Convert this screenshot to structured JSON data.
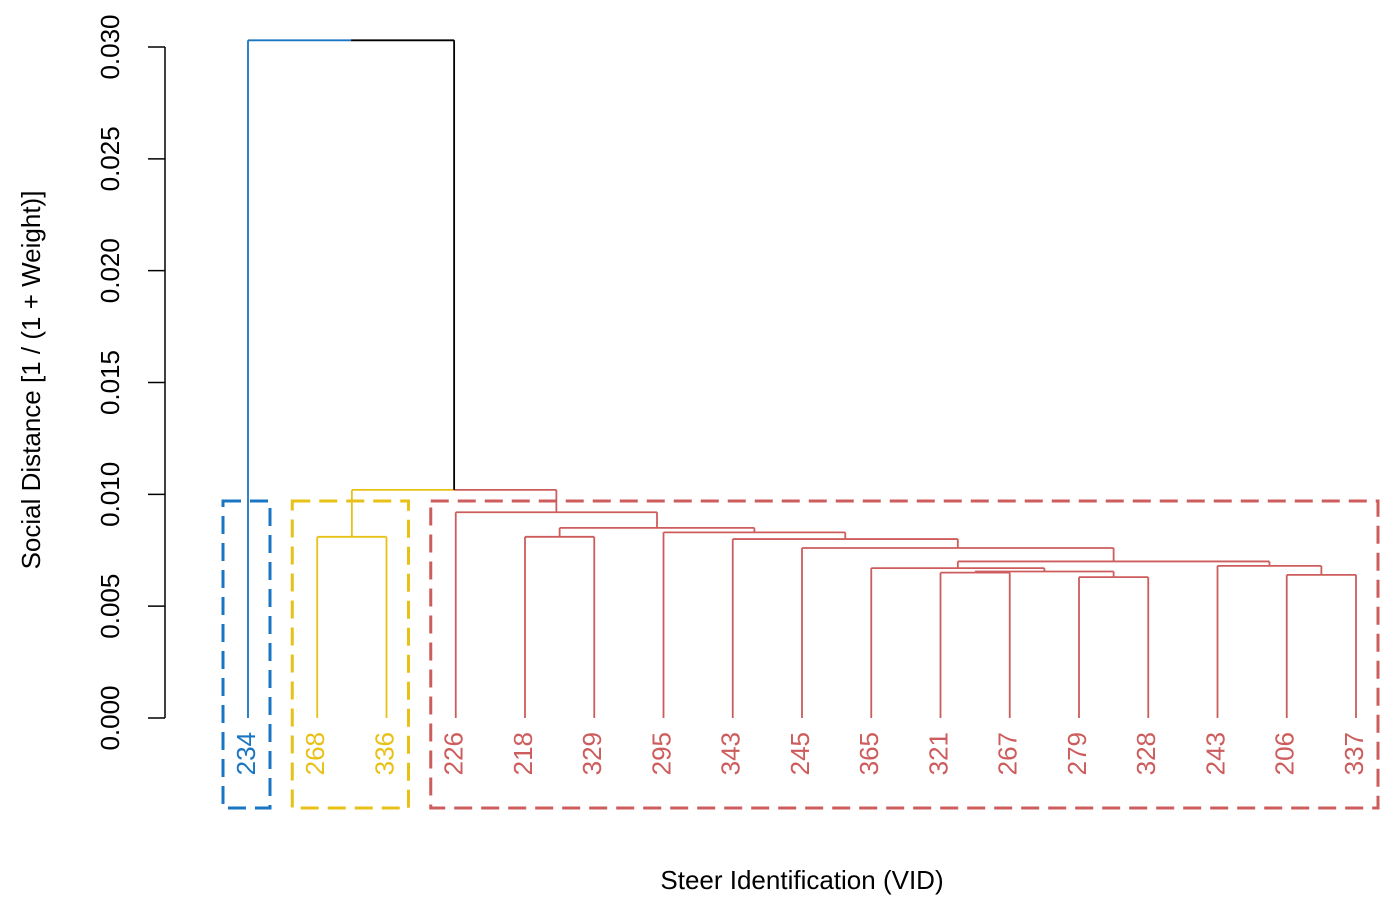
{
  "chart_data": {
    "type": "dendrogram",
    "x_label": "Steer Identification (VID)",
    "y_label": "Social Distance [1 / (1 + Weight)]",
    "leaves": [
      "234",
      "268",
      "336",
      "226",
      "218",
      "329",
      "295",
      "343",
      "245",
      "365",
      "321",
      "267",
      "279",
      "328",
      "243",
      "206",
      "337"
    ],
    "merge": [
      [
        -13,
        -14
      ],
      [
        -16,
        -17
      ],
      [
        -11,
        -12
      ],
      [
        3,
        1
      ],
      [
        -10,
        4
      ],
      [
        -15,
        2
      ],
      [
        5,
        6
      ],
      [
        -9,
        7
      ],
      [
        -8,
        8
      ],
      [
        -5,
        -6
      ],
      [
        -2,
        -3
      ],
      [
        -7,
        9
      ],
      [
        10,
        12
      ],
      [
        -4,
        13
      ],
      [
        11,
        14
      ],
      [
        -1,
        15
      ]
    ],
    "heights": [
      0.0063,
      0.0064,
      0.0065,
      0.00655,
      0.0067,
      0.0068,
      0.007,
      0.0076,
      0.008,
      0.0081,
      0.0081,
      0.0083,
      0.0085,
      0.0092,
      0.0102,
      0.0303
    ],
    "cluster": [
      1,
      2,
      2,
      3,
      3,
      3,
      3,
      3,
      3,
      3,
      3,
      3,
      3,
      3,
      3,
      3,
      3
    ],
    "cluster_colors": [
      "#1a75c2",
      "#e8c116",
      "#cd5c5c"
    ],
    "ylim": [
      0,
      0.03
    ],
    "yticks": [
      {
        "value": 0,
        "label": "0.000"
      },
      {
        "value": 0.005,
        "label": "0.005"
      },
      {
        "value": 0.01,
        "label": "0.010"
      },
      {
        "value": 0.015,
        "label": "0.015"
      },
      {
        "value": 0.02,
        "label": "0.020"
      },
      {
        "value": 0.025,
        "label": "0.025"
      },
      {
        "value": 0.03,
        "label": "0.030"
      }
    ]
  }
}
